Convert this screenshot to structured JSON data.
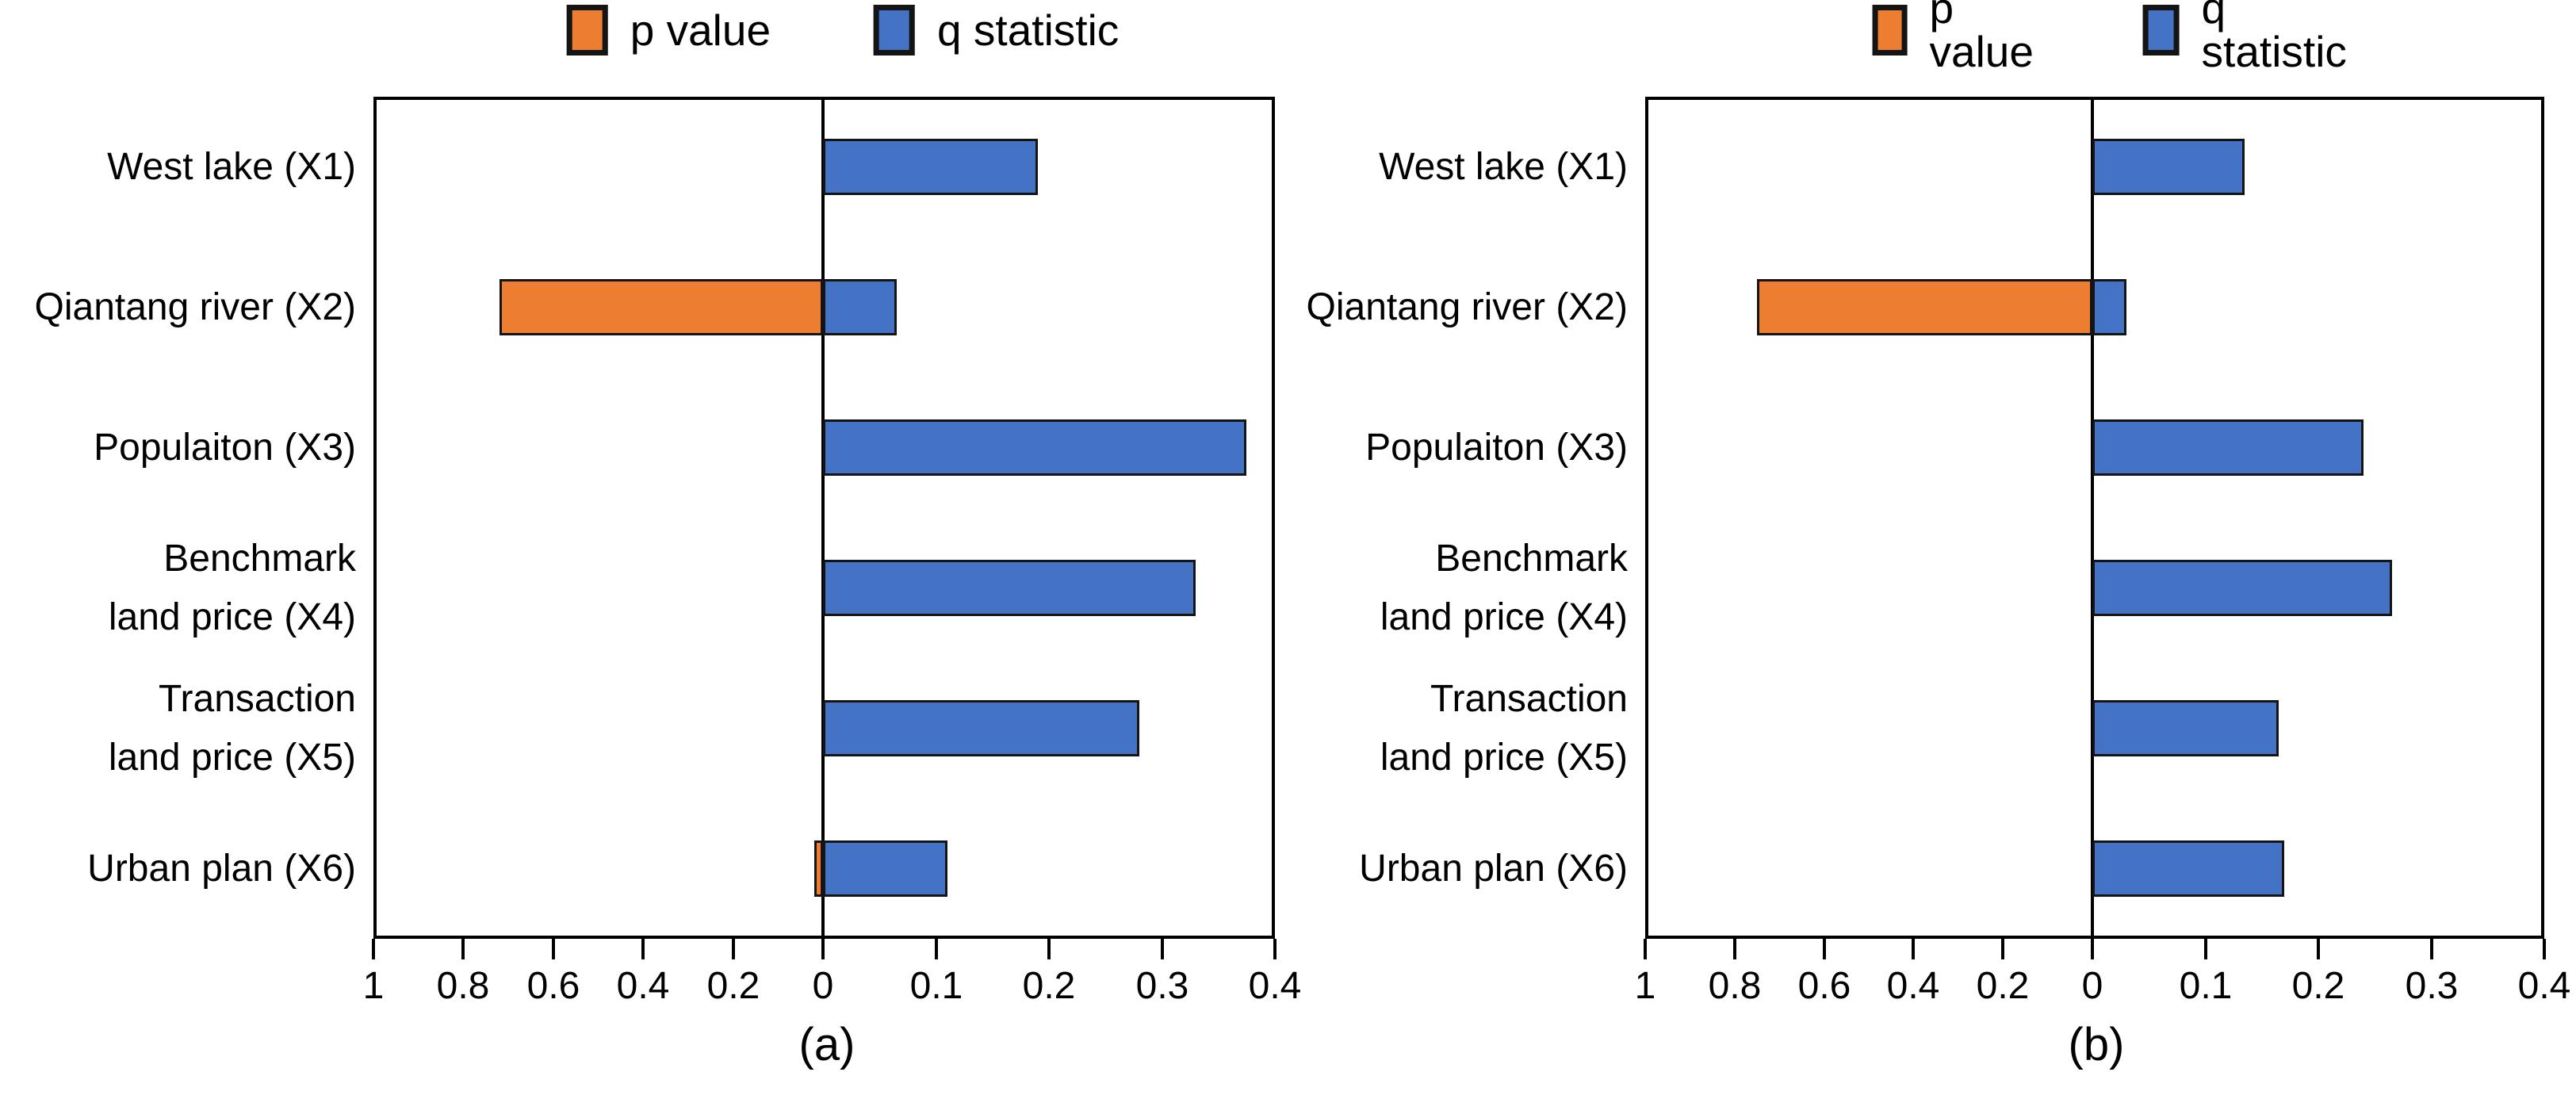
{
  "figure": {
    "legend": {
      "p_label": "p value",
      "q_label": "q statistic"
    },
    "colors": {
      "p": "#ED7D31",
      "q": "#4472C4",
      "bar_border": "#141414",
      "axis": "#000000",
      "text": "#000000",
      "background": "#FFFFFF"
    },
    "captions": [
      "(a)",
      "(b)"
    ]
  },
  "chart_data": [
    {
      "type": "bar",
      "orientation": "horizontal",
      "caption": "(a)",
      "title": "",
      "xlabel": "",
      "ylabel": "",
      "grid": false,
      "legend": [
        "p value",
        "q statistic"
      ],
      "legend_position": "top",
      "categories": [
        "West lake (X1)",
        "Qiantang river (X2)",
        "Populaiton (X3)",
        "Benchmark land price (X4)",
        "Transaction land price (X5)",
        "Urban plan (X6)"
      ],
      "category_lines": [
        [
          "West lake (X1)"
        ],
        [
          "Qiantang river (X2)"
        ],
        [
          "Populaiton (X3)"
        ],
        [
          "Benchmark",
          "land price (X4)"
        ],
        [
          "Transaction",
          "land price (X5)"
        ],
        [
          "Urban plan (X6)"
        ]
      ],
      "series": [
        {
          "name": "p value",
          "scale": "left-reversed",
          "values": [
            0,
            0.72,
            0,
            0,
            0,
            0.02
          ]
        },
        {
          "name": "q statistic",
          "scale": "right",
          "values": [
            0.19,
            0.065,
            0.375,
            0.33,
            0.28,
            0.11
          ]
        }
      ],
      "x_axis": {
        "description": "dual scale: p value increases leftward from the zero axis (0 to 1), q statistic increases rightward (0 to 0.4)",
        "left_ticks": [
          "1",
          "0.8",
          "0.6",
          "0.4",
          "0.2"
        ],
        "zero_label": "0",
        "right_ticks": [
          "0.1",
          "0.2",
          "0.3",
          "0.4"
        ],
        "left_max": 1,
        "right_max": 0.4
      }
    },
    {
      "type": "bar",
      "orientation": "horizontal",
      "caption": "(b)",
      "title": "",
      "xlabel": "",
      "ylabel": "",
      "grid": false,
      "legend": [
        "p value",
        "q statistic"
      ],
      "legend_position": "top",
      "categories": [
        "West lake (X1)",
        "Qiantang river (X2)",
        "Populaiton (X3)",
        "Benchmark land price (X4)",
        "Transaction land price (X5)",
        "Urban plan (X6)"
      ],
      "category_lines": [
        [
          "West lake (X1)"
        ],
        [
          "Qiantang river (X2)"
        ],
        [
          "Populaiton (X3)"
        ],
        [
          "Benchmark",
          "land price (X4)"
        ],
        [
          "Transaction",
          "land price (X5)"
        ],
        [
          "Urban plan (X6)"
        ]
      ],
      "series": [
        {
          "name": "p value",
          "scale": "left-reversed",
          "values": [
            0,
            0.75,
            0,
            0,
            0,
            0
          ]
        },
        {
          "name": "q statistic",
          "scale": "right",
          "values": [
            0.135,
            0.03,
            0.24,
            0.265,
            0.165,
            0.17
          ]
        }
      ],
      "x_axis": {
        "description": "dual scale: p value increases leftward from the zero axis (0 to 1), q statistic increases rightward (0 to 0.4)",
        "left_ticks": [
          "1",
          "0.8",
          "0.6",
          "0.4",
          "0.2"
        ],
        "zero_label": "0",
        "right_ticks": [
          "0.1",
          "0.2",
          "0.3",
          "0.4"
        ],
        "left_max": 1,
        "right_max": 0.4
      }
    }
  ]
}
